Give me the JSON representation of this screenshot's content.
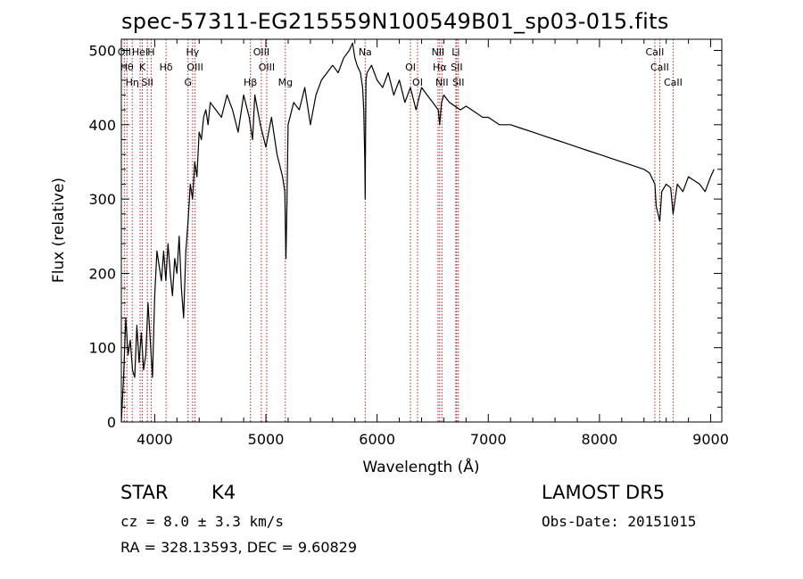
{
  "header": {
    "title": "spec-57311-EG215559N100549B01_sp03-015.fits"
  },
  "info": {
    "class_label": "STAR",
    "subclass_label": "K4",
    "survey_label": "LAMOST  DR5",
    "cz_label": "cz = 8.0 ± 3.3 km/s",
    "obs_date_label": "Obs-Date: 20151015",
    "radec_label": "RA = 328.13593, DEC =   9.60829"
  },
  "chart_data": {
    "type": "line",
    "title": "spec-57311-EG215559N100549B01_sp03-015.fits",
    "xlabel": "Wavelength (Å)",
    "ylabel": "Flux (relative)",
    "xlim": [
      3700,
      9100
    ],
    "ylim": [
      0,
      515
    ],
    "xticks": [
      4000,
      5000,
      6000,
      7000,
      8000,
      9000
    ],
    "yticks": [
      0,
      100,
      200,
      300,
      400,
      500
    ],
    "grid": false,
    "line_color": "#000000",
    "marker_color": "#b22222",
    "series": [
      {
        "x": [
          3700,
          3720,
          3740,
          3760,
          3780,
          3800,
          3820,
          3840,
          3860,
          3880,
          3900,
          3920,
          3940,
          3960,
          3980,
          4000,
          4020,
          4040,
          4060,
          4080,
          4100,
          4120,
          4140,
          4160,
          4180,
          4200,
          4220,
          4240,
          4260,
          4280,
          4300,
          4320,
          4340,
          4360,
          4380,
          4400,
          4420,
          4440,
          4460,
          4480,
          4500,
          4550,
          4600,
          4650,
          4700,
          4750,
          4800,
          4850,
          4880,
          4900,
          4950,
          5000,
          5050,
          5100,
          5150,
          5170,
          5180,
          5190,
          5200,
          5250,
          5300,
          5350,
          5400,
          5450,
          5500,
          5550,
          5600,
          5650,
          5700,
          5750,
          5780,
          5800,
          5820,
          5850,
          5870,
          5880,
          5890,
          5893,
          5896,
          5900,
          5910,
          5950,
          6000,
          6050,
          6100,
          6150,
          6200,
          6250,
          6300,
          6350,
          6400,
          6450,
          6500,
          6550,
          6563,
          6580,
          6600,
          6650,
          6700,
          6750,
          6800,
          6850,
          6900,
          6950,
          7000,
          7100,
          7200,
          7300,
          7400,
          7500,
          7600,
          7700,
          7800,
          7900,
          8000,
          8100,
          8200,
          8300,
          8400,
          8450,
          8498,
          8510,
          8542,
          8560,
          8600,
          8640,
          8662,
          8680,
          8700,
          8750,
          8800,
          8850,
          8900,
          8950,
          9000,
          9030
        ],
        "y": [
          0,
          60,
          140,
          90,
          110,
          70,
          60,
          130,
          80,
          120,
          70,
          90,
          160,
          110,
          60,
          170,
          230,
          210,
          190,
          230,
          190,
          240,
          200,
          170,
          220,
          200,
          250,
          180,
          140,
          230,
          270,
          320,
          300,
          350,
          330,
          390,
          380,
          410,
          420,
          400,
          430,
          420,
          410,
          440,
          420,
          390,
          440,
          410,
          380,
          440,
          400,
          370,
          410,
          360,
          330,
          310,
          220,
          300,
          400,
          430,
          420,
          450,
          400,
          440,
          460,
          470,
          480,
          470,
          490,
          500,
          510,
          490,
          480,
          470,
          450,
          420,
          350,
          300,
          380,
          460,
          470,
          480,
          460,
          450,
          470,
          440,
          460,
          430,
          450,
          420,
          450,
          440,
          430,
          420,
          400,
          430,
          440,
          430,
          425,
          420,
          425,
          420,
          415,
          410,
          410,
          400,
          400,
          395,
          390,
          385,
          380,
          375,
          370,
          365,
          360,
          355,
          350,
          345,
          340,
          335,
          320,
          290,
          270,
          310,
          320,
          315,
          280,
          300,
          320,
          310,
          330,
          325,
          320,
          310,
          330,
          340
        ]
      }
    ],
    "lines": [
      {
        "wave": 3727,
        "label": "OII"
      },
      {
        "wave": 3750,
        "label": "Hθ"
      },
      {
        "wave": 3798,
        "label": "Hη"
      },
      {
        "wave": 3869,
        "label": "HeI"
      },
      {
        "wave": 3889,
        "label": "K"
      },
      {
        "wave": 3934,
        "label": "SII"
      },
      {
        "wave": 3968,
        "label": "H"
      },
      {
        "wave": 4102,
        "label": "Hδ"
      },
      {
        "wave": 4300,
        "label": "G"
      },
      {
        "wave": 4341,
        "label": "Hγ"
      },
      {
        "wave": 4363,
        "label": "OIII"
      },
      {
        "wave": 4861,
        "label": "Hβ"
      },
      {
        "wave": 4959,
        "label": "OIII"
      },
      {
        "wave": 5007,
        "label": "OIII"
      },
      {
        "wave": 5175,
        "label": "Mg"
      },
      {
        "wave": 5893,
        "label": "Na"
      },
      {
        "wave": 6300,
        "label": "OI"
      },
      {
        "wave": 6364,
        "label": "OI"
      },
      {
        "wave": 6548,
        "label": "NII"
      },
      {
        "wave": 6563,
        "label": "Hα"
      },
      {
        "wave": 6583,
        "label": "NII"
      },
      {
        "wave": 6708,
        "label": "Li"
      },
      {
        "wave": 6716,
        "label": "SII"
      },
      {
        "wave": 6731,
        "label": "SII"
      },
      {
        "wave": 8498,
        "label": "CaII"
      },
      {
        "wave": 8542,
        "label": "CaII"
      },
      {
        "wave": 8662,
        "label": "CaII"
      }
    ]
  }
}
